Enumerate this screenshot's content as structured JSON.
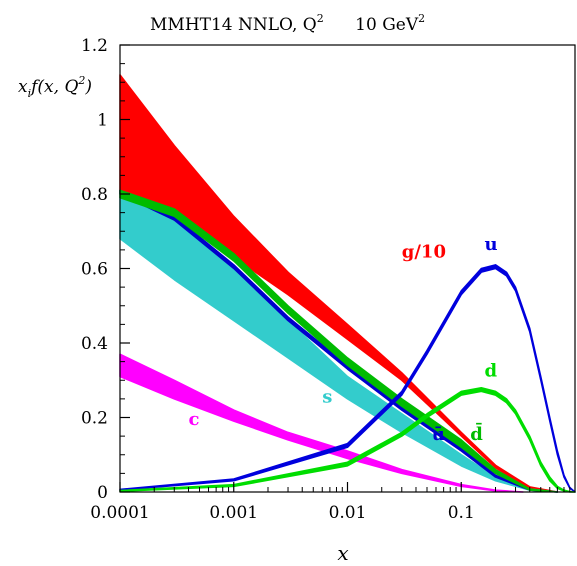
{
  "chart_data": {
    "type": "area",
    "title": "MMHT14 NNLO, Q² = 10 GeV²",
    "title_left": "MMHT14 NNLO, Q",
    "title_right": "10 GeV",
    "title_sup": "2",
    "ylabel": "xf(x, Q²)",
    "ylabel_main": "x",
    "ylabel_sub": "i",
    "ylabel_rest": "f(x, Q",
    "ylabel_sup": "2",
    "ylabel_close": ")",
    "xlabel": "x",
    "x_scale": "log",
    "xlim": [
      0.0001,
      1
    ],
    "ylim": [
      0,
      1.2
    ],
    "x_ticks": [
      {
        "v": 0.0001,
        "label": "0.0001"
      },
      {
        "v": 0.001,
        "label": "0.001"
      },
      {
        "v": 0.01,
        "label": "0.01"
      },
      {
        "v": 0.1,
        "label": "0.1"
      }
    ],
    "y_ticks": [
      {
        "v": 0,
        "label": "0"
      },
      {
        "v": 0.2,
        "label": "0.2"
      },
      {
        "v": 0.4,
        "label": "0.4"
      },
      {
        "v": 0.6,
        "label": "0.6"
      },
      {
        "v": 0.8,
        "label": "0.8"
      },
      {
        "v": 1,
        "label": "1"
      },
      {
        "v": 1.2,
        "label": "1.2"
      }
    ],
    "series": [
      {
        "name": "g/10",
        "color": "#ff0000",
        "label_at": [
          0.03,
          0.63
        ],
        "x": [
          0.0001,
          0.0003,
          0.001,
          0.003,
          0.01,
          0.03,
          0.1,
          0.2,
          0.4,
          0.7
        ],
        "lower": [
          0.8,
          0.74,
          0.63,
          0.53,
          0.41,
          0.3,
          0.15,
          0.065,
          0.01,
          0.0
        ],
        "upper": [
          1.12,
          0.93,
          0.74,
          0.59,
          0.45,
          0.32,
          0.16,
          0.072,
          0.014,
          0.0
        ]
      },
      {
        "name": "s",
        "color": "#33cccc",
        "label_at": [
          0.006,
          0.24
        ],
        "x": [
          0.0001,
          0.0003,
          0.001,
          0.003,
          0.01,
          0.03,
          0.1,
          0.2,
          0.4,
          0.7
        ],
        "lower": [
          0.68,
          0.57,
          0.46,
          0.36,
          0.25,
          0.16,
          0.07,
          0.03,
          0.005,
          0.0
        ],
        "upper": [
          0.81,
          0.74,
          0.6,
          0.46,
          0.31,
          0.21,
          0.1,
          0.04,
          0.008,
          0.0
        ]
      },
      {
        "name": "ū",
        "color": "#0000cc",
        "label_at": [
          0.055,
          0.14
        ],
        "x": [
          0.0001,
          0.0003,
          0.001,
          0.003,
          0.01,
          0.03,
          0.1,
          0.2,
          0.4,
          0.7
        ],
        "lower": [
          0.8,
          0.73,
          0.6,
          0.46,
          0.33,
          0.22,
          0.11,
          0.04,
          0.005,
          0.0
        ],
        "upper": [
          0.81,
          0.74,
          0.61,
          0.47,
          0.34,
          0.23,
          0.12,
          0.045,
          0.007,
          0.0
        ]
      },
      {
        "name": "d̄",
        "color": "#00bb00",
        "label_at": [
          0.12,
          0.14
        ],
        "x": [
          0.0001,
          0.0003,
          0.001,
          0.003,
          0.01,
          0.03,
          0.1,
          0.2,
          0.4,
          0.7
        ],
        "lower": [
          0.79,
          0.74,
          0.62,
          0.48,
          0.34,
          0.23,
          0.12,
          0.05,
          0.005,
          0.0
        ],
        "upper": [
          0.81,
          0.76,
          0.64,
          0.5,
          0.36,
          0.25,
          0.14,
          0.06,
          0.008,
          0.0
        ]
      },
      {
        "name": "c",
        "color": "#ff00ff",
        "label_at": [
          0.0004,
          0.18
        ],
        "x": [
          0.0001,
          0.0003,
          0.001,
          0.003,
          0.01,
          0.03,
          0.1,
          0.2,
          0.35
        ],
        "lower": [
          0.31,
          0.25,
          0.19,
          0.14,
          0.09,
          0.05,
          0.015,
          0.003,
          0.0
        ],
        "upper": [
          0.37,
          0.3,
          0.22,
          0.16,
          0.11,
          0.06,
          0.02,
          0.005,
          0.0
        ]
      },
      {
        "name": "u_v",
        "color": "#0000dd",
        "label_at": [
          0.16,
          0.65
        ],
        "x": [
          0.0001,
          0.001,
          0.01,
          0.03,
          0.05,
          0.1,
          0.15,
          0.2,
          0.25,
          0.3,
          0.4,
          0.5,
          0.6,
          0.7,
          0.8,
          0.9,
          1.0
        ],
        "lower": [
          0.005,
          0.03,
          0.12,
          0.26,
          0.37,
          0.53,
          0.59,
          0.6,
          0.58,
          0.54,
          0.43,
          0.3,
          0.19,
          0.1,
          0.04,
          0.01,
          0.0
        ],
        "upper": [
          0.007,
          0.035,
          0.13,
          0.27,
          0.38,
          0.54,
          0.6,
          0.61,
          0.59,
          0.55,
          0.44,
          0.31,
          0.2,
          0.11,
          0.045,
          0.012,
          0.0
        ]
      },
      {
        "name": "d_v",
        "color": "#00dd00",
        "label_at": [
          0.16,
          0.31
        ],
        "x": [
          0.0001,
          0.001,
          0.01,
          0.03,
          0.05,
          0.1,
          0.15,
          0.2,
          0.25,
          0.3,
          0.4,
          0.5,
          0.6,
          0.7,
          0.8,
          0.9,
          1.0
        ],
        "lower": [
          0.002,
          0.015,
          0.07,
          0.15,
          0.2,
          0.26,
          0.27,
          0.26,
          0.24,
          0.21,
          0.14,
          0.07,
          0.03,
          0.01,
          0.003,
          0.0,
          0.0
        ],
        "upper": [
          0.004,
          0.02,
          0.08,
          0.16,
          0.21,
          0.27,
          0.28,
          0.27,
          0.25,
          0.22,
          0.15,
          0.08,
          0.04,
          0.015,
          0.005,
          0.001,
          0.0
        ]
      }
    ],
    "series_labels": [
      "g/10",
      "s",
      "ū",
      "d̄",
      "c",
      "u",
      "d"
    ],
    "grid": false,
    "legend": "none"
  }
}
